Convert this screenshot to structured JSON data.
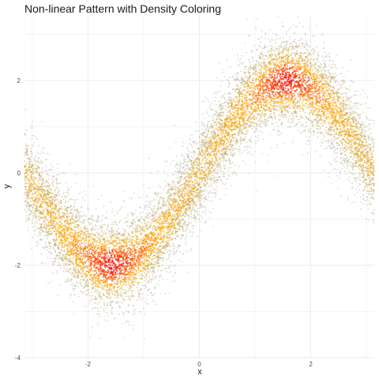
{
  "chart_data": {
    "type": "scatter",
    "title": "Non-linear Pattern with Density Coloring",
    "xlabel": "x",
    "ylabel": "y",
    "xlim": [
      -3.14,
      3.14
    ],
    "ylim": [
      -4,
      3.4
    ],
    "x_ticks": [
      -2,
      0,
      2
    ],
    "y_ticks": [
      -4,
      -2,
      0,
      2
    ],
    "x_tick_labels": [
      "-2",
      "0",
      "2"
    ],
    "y_tick_labels": [
      "-4",
      "-2",
      "0",
      "2"
    ],
    "grid": true,
    "legend": "none",
    "pattern": "y = 2 sin(x) + noise",
    "amplitude": 2,
    "noise_sd": 0.5,
    "n_points": 10000,
    "color_scale": {
      "low": "#9e9e9e",
      "mid_low": "#b5a25a",
      "mid": "#ffa500",
      "high": "#ff0000"
    },
    "point_opacity": 0.55,
    "background": "#ffffff",
    "grid_color": "#ebebeb"
  }
}
